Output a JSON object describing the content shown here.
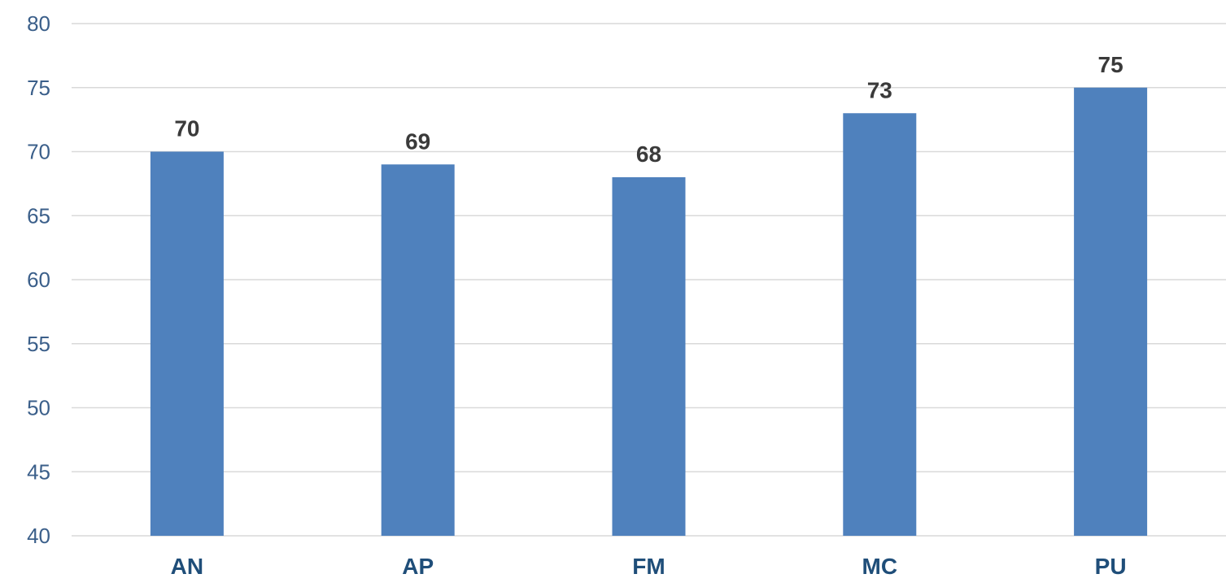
{
  "chart_data": {
    "type": "bar",
    "title": "",
    "xlabel": "",
    "ylabel": "",
    "categories": [
      "AN",
      "AP",
      "FM",
      "MC",
      "PU"
    ],
    "values": [
      70,
      69,
      68,
      73,
      75
    ],
    "ylim": [
      40,
      80
    ],
    "y_ticks": [
      40,
      45,
      50,
      55,
      60,
      65,
      70,
      75,
      80
    ],
    "data_labels": true,
    "grid": true,
    "legend": "none",
    "colors": {
      "bar": "#4f81bd",
      "grid": "#d9d9d9",
      "y_tick_text": "#3b5f8a",
      "x_tick_text": "#1f4e79",
      "data_label_text": "#3a3a3a"
    }
  }
}
